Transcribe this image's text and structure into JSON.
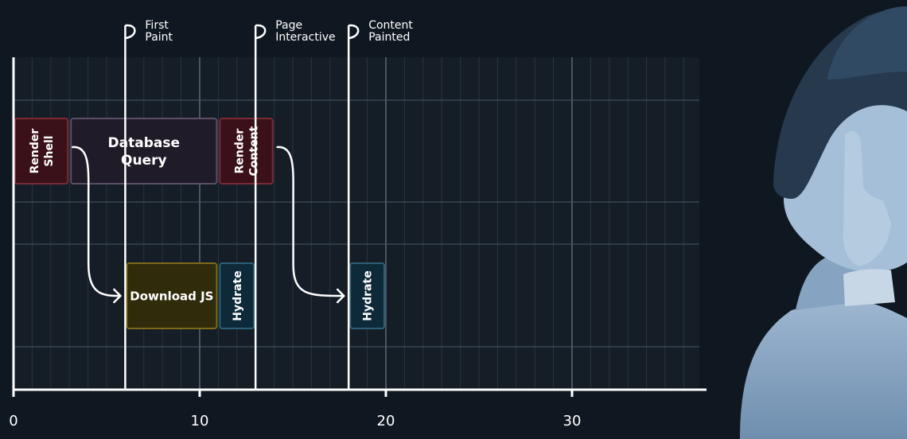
{
  "chart_data": {
    "type": "timeline",
    "title": "",
    "x_axis": {
      "min": 0,
      "max": 37,
      "ticks": [
        0,
        10,
        20,
        30
      ],
      "tick_labels": [
        "0",
        "10",
        "20",
        "30"
      ]
    },
    "lanes": 2,
    "markers": [
      {
        "name": "first-paint",
        "x": 6,
        "label_lines": [
          "First",
          "Paint"
        ]
      },
      {
        "name": "page-interactive",
        "x": 13,
        "label_lines": [
          "Page",
          "Interactive"
        ]
      },
      {
        "name": "content-painted",
        "x": 18,
        "label_lines": [
          "Content",
          "Painted"
        ]
      }
    ],
    "tasks": [
      {
        "name": "render-shell",
        "lane": 0,
        "start": 0,
        "end": 3,
        "label_lines": [
          "Render",
          "Shell"
        ],
        "vertical": true,
        "fill": "#3a1118",
        "stroke": "#7b2a37"
      },
      {
        "name": "database-query",
        "lane": 0,
        "start": 3,
        "end": 11,
        "label_lines": [
          "Database",
          "Query"
        ],
        "vertical": false,
        "fill": "#201b28",
        "stroke": "#5a4f66"
      },
      {
        "name": "render-content",
        "lane": 0,
        "start": 11,
        "end": 14,
        "label_lines": [
          "Render",
          "Content"
        ],
        "vertical": true,
        "fill": "#3a1118",
        "stroke": "#7b2a37"
      },
      {
        "name": "download-js",
        "lane": 1,
        "start": 6,
        "end": 11,
        "label_lines": [
          "Download JS"
        ],
        "vertical": false,
        "fill": "#302b0b",
        "stroke": "#7d6a18"
      },
      {
        "name": "hydrate-1",
        "lane": 1,
        "start": 11,
        "end": 13,
        "label_lines": [
          "Hydrate"
        ],
        "vertical": true,
        "fill": "#0e2a38",
        "stroke": "#2b6078"
      },
      {
        "name": "hydrate-2",
        "lane": 1,
        "start": 18,
        "end": 20,
        "label_lines": [
          "Hydrate"
        ],
        "vertical": true,
        "fill": "#0e2a38",
        "stroke": "#2b6078"
      }
    ],
    "dependencies": [
      {
        "name": "render-shell-to-download-js",
        "from": "render-shell",
        "to": "download-js"
      },
      {
        "name": "render-content-to-hydrate",
        "from": "render-content",
        "to": "hydrate-2"
      }
    ],
    "grid": true
  },
  "colors": {
    "background": "#0f1820",
    "plot_background": "#151e27",
    "grid_minor": "#2a343e",
    "grid_major": "#4a5560",
    "axis": "#ffffff",
    "text": "#ffffff"
  },
  "decor": {
    "illustration": "thinking-person-figure"
  }
}
